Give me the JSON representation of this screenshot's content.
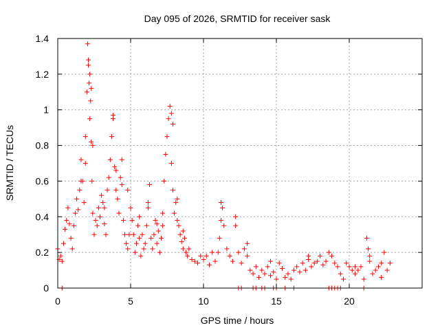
{
  "chart_data": {
    "type": "scatter",
    "title": "Day 095 of 2026, SRMTID for receiver sask",
    "xlabel": "GPS time / hours",
    "ylabel": "SRMTID / TECUs",
    "xlim": [
      0,
      25
    ],
    "ylim": [
      0,
      1.4
    ],
    "xticks": [
      0,
      5,
      10,
      15,
      20
    ],
    "yticks": [
      0,
      0.2,
      0.4,
      0.6,
      0.8,
      1,
      1.2,
      1.4
    ],
    "ytick_labels": [
      "0",
      "0.2",
      "0.4",
      "0.6",
      "0.8",
      "1",
      "1.2",
      "1.4"
    ],
    "grid": true,
    "marker": "+",
    "color": "#ff0000",
    "series": [
      {
        "name": "SRMTID",
        "x": [
          0.0,
          0.1,
          0.2,
          0.3,
          0.4,
          0.5,
          0.6,
          0.7,
          0.8,
          0.9,
          1.0,
          1.1,
          1.2,
          1.3,
          1.4,
          1.5,
          1.6,
          1.7,
          1.8,
          1.9,
          2.0,
          2.05,
          2.1,
          2.15,
          2.2,
          2.25,
          2.3,
          2.35,
          2.4,
          2.5,
          2.6,
          2.7,
          2.8,
          2.9,
          3.0,
          3.1,
          3.2,
          3.3,
          3.4,
          3.5,
          3.6,
          3.7,
          3.8,
          3.9,
          4.0,
          4.1,
          4.2,
          4.3,
          4.4,
          4.5,
          4.6,
          4.7,
          4.8,
          4.9,
          5.0,
          5.1,
          5.2,
          5.3,
          5.4,
          5.5,
          5.6,
          5.7,
          5.8,
          5.9,
          6.0,
          6.1,
          6.2,
          6.3,
          6.4,
          6.5,
          6.6,
          6.7,
          6.8,
          6.9,
          7.0,
          7.1,
          7.2,
          7.3,
          7.4,
          7.5,
          7.6,
          7.7,
          7.8,
          7.9,
          8.0,
          8.1,
          8.2,
          8.3,
          8.4,
          8.5,
          8.6,
          8.7,
          8.8,
          8.9,
          9.0,
          9.2,
          9.4,
          9.6,
          9.8,
          10.0,
          10.2,
          10.4,
          10.6,
          10.8,
          11.0,
          11.1,
          11.2,
          11.3,
          11.4,
          11.6,
          11.8,
          12.0,
          12.2,
          12.4,
          12.6,
          12.8,
          13.0,
          13.2,
          13.4,
          13.6,
          13.8,
          14.0,
          14.2,
          14.4,
          14.6,
          14.8,
          15.0,
          15.2,
          15.4,
          15.6,
          15.8,
          16.0,
          16.2,
          16.4,
          16.6,
          16.8,
          17.0,
          17.2,
          17.4,
          17.6,
          17.8,
          18.0,
          18.2,
          18.4,
          18.6,
          18.8,
          19.0,
          19.2,
          19.4,
          19.6,
          19.8,
          20.0,
          20.2,
          20.4,
          20.6,
          20.8,
          21.0,
          21.2,
          21.3,
          21.4,
          21.6,
          21.8,
          22.0,
          22.2,
          22.4,
          22.6,
          22.8,
          0.3,
          12.4,
          12.6,
          13.4,
          13.6,
          14.0,
          14.2,
          14.8,
          15.0,
          15.6,
          16.2,
          18.6,
          18.8,
          19.0,
          19.2,
          19.4,
          21.0,
          2.1,
          2.2,
          2.3,
          3.8,
          7.8,
          7.9,
          1.6,
          1.9,
          2.4,
          3.2,
          4.0,
          4.4,
          4.8,
          5.6,
          6.2,
          6.8,
          7.2,
          8.2,
          8.6,
          11.2,
          12.2,
          13.0,
          14.6,
          17.2,
          20.4,
          21.4,
          22.2
        ],
        "y": [
          0.22,
          0.16,
          0.18,
          0.15,
          0.25,
          0.33,
          0.38,
          0.45,
          0.36,
          0.28,
          0.22,
          0.35,
          0.42,
          0.5,
          0.44,
          0.55,
          0.72,
          0.6,
          0.48,
          0.85,
          1.1,
          1.37,
          1.25,
          1.15,
          0.95,
          1.05,
          0.82,
          0.6,
          0.42,
          0.3,
          0.38,
          0.35,
          0.45,
          0.4,
          0.52,
          0.48,
          0.36,
          0.3,
          0.55,
          0.62,
          0.72,
          0.85,
          0.97,
          0.68,
          0.55,
          0.5,
          0.42,
          0.62,
          0.72,
          0.38,
          0.3,
          0.25,
          0.22,
          0.3,
          0.45,
          0.38,
          0.3,
          0.2,
          0.25,
          0.35,
          0.28,
          0.18,
          0.3,
          0.22,
          0.25,
          0.35,
          0.45,
          0.58,
          0.28,
          0.22,
          0.3,
          0.38,
          0.25,
          0.32,
          0.2,
          0.28,
          0.35,
          0.6,
          0.75,
          0.85,
          0.95,
          1.02,
          0.7,
          0.55,
          0.42,
          0.48,
          0.38,
          0.35,
          0.3,
          0.26,
          0.22,
          0.28,
          0.2,
          0.18,
          0.22,
          0.16,
          0.15,
          0.14,
          0.18,
          0.16,
          0.18,
          0.13,
          0.2,
          0.15,
          0.2,
          0.28,
          0.38,
          0.45,
          0.35,
          0.22,
          0.18,
          0.15,
          0.4,
          0.2,
          0.14,
          0.22,
          0.18,
          0.1,
          0.08,
          0.12,
          0.06,
          0.1,
          0.08,
          0.12,
          0.07,
          0.09,
          0.05,
          0.14,
          0.11,
          0.06,
          0.08,
          0.05,
          0.1,
          0.12,
          0.09,
          0.14,
          0.1,
          0.16,
          0.12,
          0.14,
          0.15,
          0.18,
          0.13,
          0.15,
          0.2,
          0.18,
          0.14,
          0.12,
          0.08,
          0.05,
          0.14,
          0.12,
          0.1,
          0.08,
          0.1,
          0.12,
          0.05,
          0.28,
          0.22,
          0.15,
          0.08,
          0.1,
          0.12,
          0.06,
          0.2,
          0.1,
          0.14,
          0.0,
          0.0,
          0.0,
          0.0,
          0.0,
          0.0,
          0.0,
          0.0,
          0.0,
          0.0,
          0.0,
          0.0,
          0.0,
          0.0,
          0.0,
          0.0,
          0.0,
          1.28,
          1.2,
          1.12,
          0.95,
          0.98,
          0.92,
          0.6,
          0.7,
          0.8,
          0.45,
          0.66,
          0.58,
          0.55,
          0.4,
          0.48,
          0.36,
          0.42,
          0.5,
          0.32,
          0.48,
          0.35,
          0.25,
          0.15,
          0.18,
          0.12,
          0.18,
          0.14
        ]
      }
    ]
  }
}
